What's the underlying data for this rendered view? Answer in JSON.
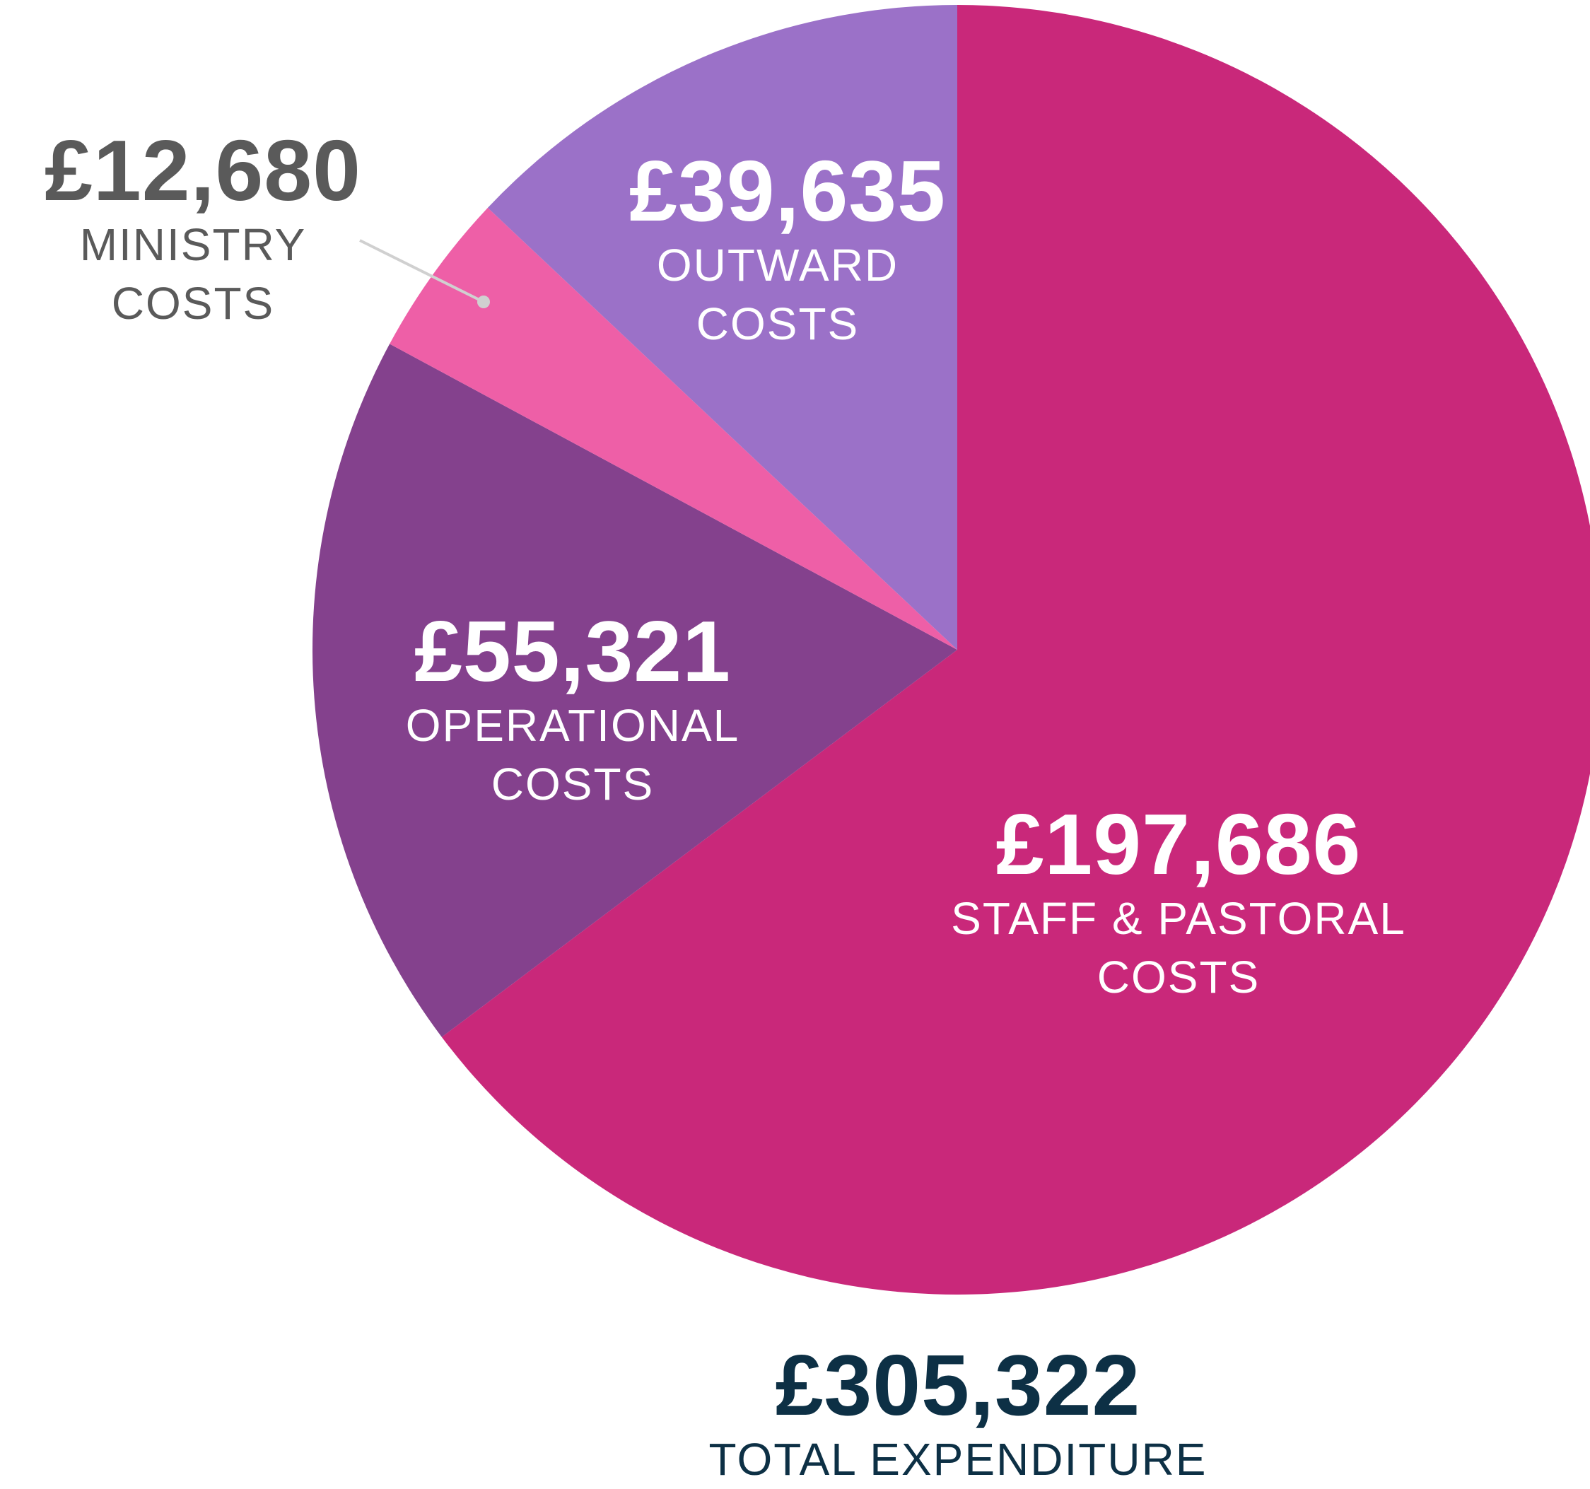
{
  "chart_data": {
    "type": "pie",
    "categories": [
      "STAFF & PASTORAL COSTS",
      "OPERATIONAL COSTS",
      "MINISTRY COSTS",
      "OUTWARD COSTS"
    ],
    "values": [
      197686,
      55321,
      12680,
      39635
    ],
    "value_labels": [
      "£197,686",
      "£55,321",
      "£12,680",
      "£39,635"
    ],
    "colors": [
      "#c9287a",
      "#84418d",
      "#ee5fa7",
      "#9b71c8"
    ],
    "total": {
      "value": 305322,
      "value_label": "£305,322",
      "label": "TOTAL EXPENDITURE"
    }
  }
}
